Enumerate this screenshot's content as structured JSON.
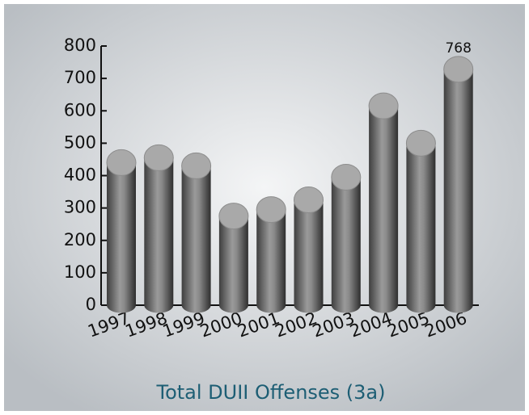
{
  "chart_data": {
    "type": "bar",
    "title": "Total DUII Offenses (3a)",
    "categories": [
      "1997",
      "1998",
      "1999",
      "2000",
      "2001",
      "2002",
      "2003",
      "2004",
      "2005",
      "2006"
    ],
    "values": [
      480,
      495,
      470,
      315,
      335,
      365,
      435,
      655,
      540,
      768
    ],
    "value_labels": [
      null,
      null,
      null,
      null,
      null,
      null,
      null,
      null,
      null,
      "768"
    ],
    "color": "#7a7a7a",
    "ylim": [
      0,
      800
    ],
    "yticks": [
      0,
      100,
      200,
      300,
      400,
      500,
      600,
      700,
      800
    ],
    "grid": false
  }
}
